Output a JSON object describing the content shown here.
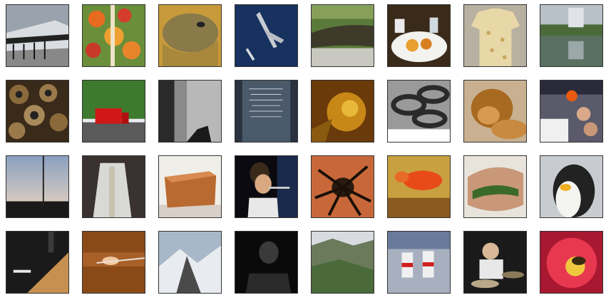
{
  "images": [
    {
      "name": "train-image"
    },
    {
      "name": "floral-fabric-image"
    },
    {
      "name": "lizard-image"
    },
    {
      "name": "fighter-jet-image"
    },
    {
      "name": "alligator-image"
    },
    {
      "name": "breakfast-plate-image"
    },
    {
      "name": "shirt-image"
    },
    {
      "name": "lake-reflection-image"
    },
    {
      "name": "sea-urchins-image"
    },
    {
      "name": "red-truck-image"
    },
    {
      "name": "dark-room-hand-image"
    },
    {
      "name": "engraved-plaque-image"
    },
    {
      "name": "crab-image"
    },
    {
      "name": "chain-image"
    },
    {
      "name": "lion-image"
    },
    {
      "name": "people-torch-image"
    },
    {
      "name": "dusk-sky-image"
    },
    {
      "name": "robed-figure-image"
    },
    {
      "name": "wooden-chest-image"
    },
    {
      "name": "flute-girl-image"
    },
    {
      "name": "tarantula-image"
    },
    {
      "name": "goldfish-image"
    },
    {
      "name": "meatloaf-image"
    },
    {
      "name": "penguin-image"
    },
    {
      "name": "staircase-image"
    },
    {
      "name": "wood-floor-image"
    },
    {
      "name": "snowy-mountain-image"
    },
    {
      "name": "dark-figure-image"
    },
    {
      "name": "mountain-valley-image"
    },
    {
      "name": "runners-image"
    },
    {
      "name": "drummer-image"
    },
    {
      "name": "flower-bee-image"
    }
  ]
}
